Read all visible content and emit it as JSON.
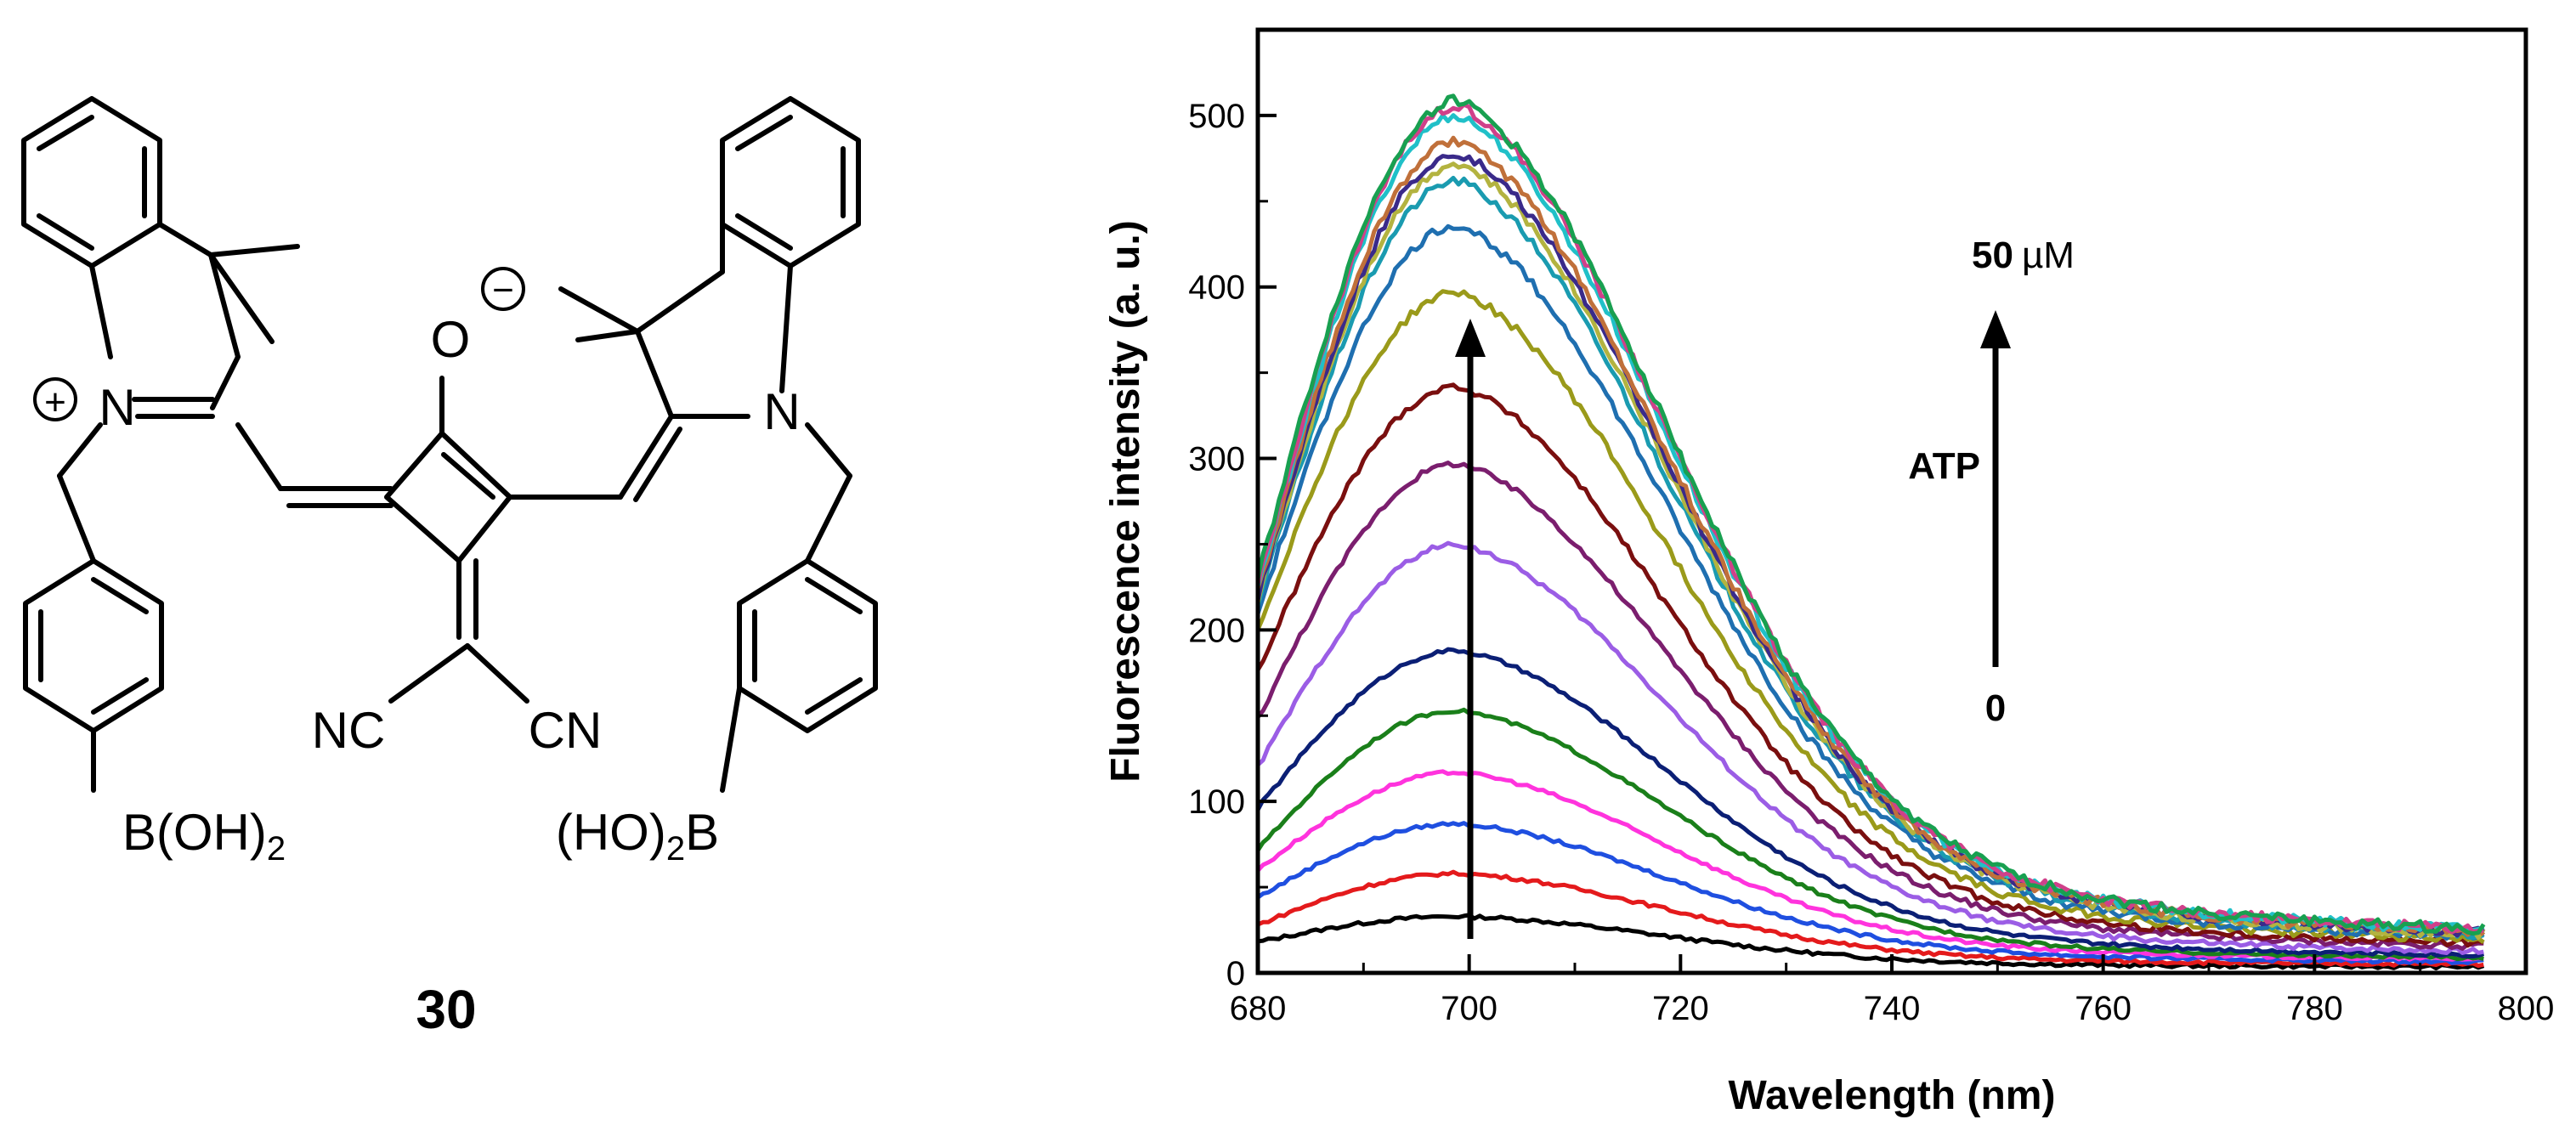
{
  "structure": {
    "compound_label": "30",
    "atoms": {
      "n_plus": "N",
      "charge_plus": "+",
      "oxygen": "O",
      "charge_minus": "−",
      "n_right": "N",
      "nc": "NC",
      "cn": "CN",
      "boronic_left": {
        "base": "B(OH)",
        "sub": "2"
      },
      "boronic_right": {
        "pre": "(HO)",
        "sub": "2",
        "post": "B"
      }
    }
  },
  "chart_data": {
    "type": "line",
    "title": "",
    "xlabel": "Wavelength (nm)",
    "ylabel": "Fluorescence intensity (a. u.)",
    "xlim": [
      680,
      800
    ],
    "ylim": [
      0,
      550
    ],
    "xticks": [
      "680",
      "700",
      "720",
      "740",
      "760",
      "780",
      "800"
    ],
    "yticks": [
      "0",
      "100",
      "200",
      "300",
      "400",
      "500"
    ],
    "annotation": {
      "top": {
        "value": "50",
        "unit": "µM"
      },
      "label": "ATP",
      "bottom": "0"
    },
    "series": [
      {
        "color": "#000000",
        "peak": 33,
        "start": 18,
        "end": 3
      },
      {
        "color": "#e41a1c",
        "peak": 58,
        "start": 28,
        "end": 4
      },
      {
        "color": "#1f4fe0",
        "peak": 87,
        "start": 44,
        "end": 5
      },
      {
        "color": "#ff33dd",
        "peak": 117,
        "start": 60,
        "end": 6
      },
      {
        "color": "#1a7f1a",
        "peak": 153,
        "start": 72,
        "end": 6
      },
      {
        "color": "#0b1f75",
        "peak": 188,
        "start": 96,
        "end": 7
      },
      {
        "color": "#9b5de5",
        "peak": 250,
        "start": 120,
        "end": 8
      },
      {
        "color": "#7b1e6e",
        "peak": 297,
        "start": 148,
        "end": 10
      },
      {
        "color": "#7a0f0f",
        "peak": 342,
        "start": 176,
        "end": 11
      },
      {
        "color": "#9a9a1a",
        "peak": 397,
        "start": 200,
        "end": 12
      },
      {
        "color": "#1f6fb0",
        "peak": 436,
        "start": 210,
        "end": 13
      },
      {
        "color": "#1a9bb0",
        "peak": 462,
        "start": 215,
        "end": 14
      },
      {
        "color": "#b3b340",
        "peak": 472,
        "start": 218,
        "end": 14
      },
      {
        "color": "#3a2a8a",
        "peak": 478,
        "start": 220,
        "end": 15
      },
      {
        "color": "#c0703a",
        "peak": 485,
        "start": 222,
        "end": 15
      },
      {
        "color": "#20c0c8",
        "peak": 500,
        "start": 224,
        "end": 16
      },
      {
        "color": "#d0408a",
        "peak": 506,
        "start": 226,
        "end": 16
      },
      {
        "color": "#18a050",
        "peak": 509,
        "start": 230,
        "end": 16
      }
    ]
  }
}
